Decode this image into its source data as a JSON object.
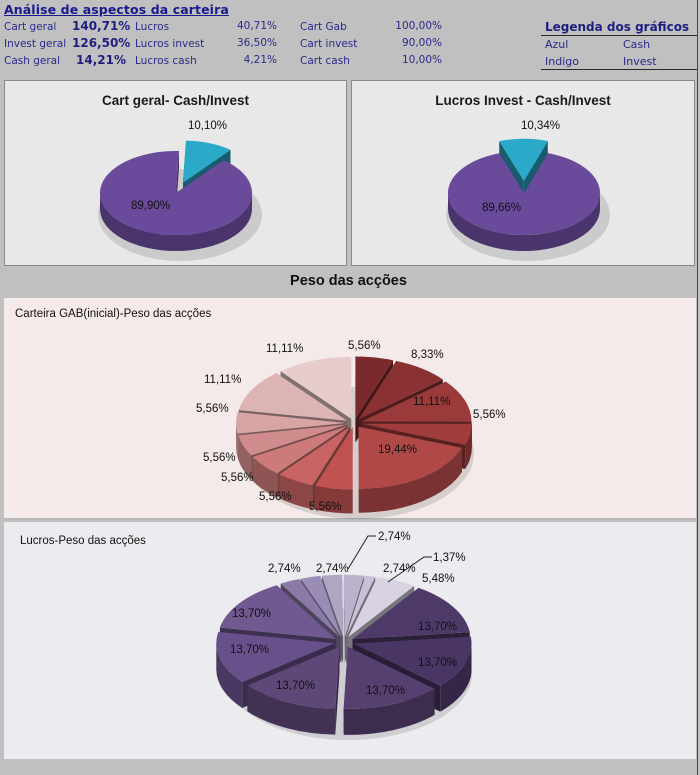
{
  "summary": {
    "title": "Análise de aspectos da carteira",
    "col1": [
      {
        "label": "Cart geral",
        "value": "140,71%"
      },
      {
        "label": "Invest geral",
        "value": "126,50%"
      },
      {
        "label": "Cash geral",
        "value": "14,21%"
      }
    ],
    "col2": [
      {
        "label": "Lucros",
        "value": "40,71%"
      },
      {
        "label": "Lucros invest",
        "value": "36,50%"
      },
      {
        "label": "Lucros cash",
        "value": "4,21%"
      }
    ],
    "col3": [
      {
        "label": "Cart Gab",
        "value": "100,00%"
      },
      {
        "label": "Cart invest",
        "value": "90,00%"
      },
      {
        "label": "Cart cash",
        "value": "10,00%"
      }
    ]
  },
  "legend": {
    "title": "Legenda dos gráficos",
    "rows": [
      {
        "color_name": "Azul",
        "meaning": "Cash"
      },
      {
        "color_name": "Indigo",
        "meaning": "Invest"
      }
    ]
  },
  "section_title": "Peso das acções",
  "colors": {
    "cash": "#2aa9c9",
    "invest": "#6a4a9a",
    "background": "#c0c0c0",
    "title_blue": "#1f1f80"
  },
  "chart_data": [
    {
      "type": "pie",
      "title": "Cart geral- Cash/Invest",
      "categories": [
        "Cash",
        "Invest"
      ],
      "values": [
        10.1,
        89.9
      ],
      "labels": [
        "10,10%",
        "89,90%"
      ],
      "colors": [
        "#2aa9c9",
        "#6a4a9a"
      ],
      "exploded": [
        true,
        false
      ],
      "style": "3d"
    },
    {
      "type": "pie",
      "title": "Lucros Invest - Cash/Invest",
      "categories": [
        "Cash",
        "Invest"
      ],
      "values": [
        10.34,
        89.66
      ],
      "labels": [
        "10,34%",
        "89,66%"
      ],
      "colors": [
        "#2aa9c9",
        "#6a4a9a"
      ],
      "exploded": [
        true,
        false
      ],
      "style": "3d"
    },
    {
      "type": "pie",
      "title": "Carteira GAB(inicial)-Peso das acções",
      "values": [
        5.56,
        8.33,
        11.11,
        5.56,
        19.44,
        5.56,
        5.56,
        5.56,
        5.56,
        5.56,
        11.11,
        11.11
      ],
      "labels": [
        "5,56%",
        "8,33%",
        "11,11%",
        "5,56%",
        "19,44%",
        "5,56%",
        "5,56%",
        "5,56%",
        "5,56%",
        "5,56%",
        "11,11%",
        "11,11%"
      ],
      "colors": [
        "#7a2a2a",
        "#8a3232",
        "#9a3a3a",
        "#a03c3c",
        "#b04848",
        "#c05252",
        "#c86464",
        "#cc7a7a",
        "#d08c8c",
        "#d8a4a4",
        "#dcb4b4",
        "#e8cccc"
      ],
      "exploded": "all",
      "style": "3d"
    },
    {
      "type": "pie",
      "title": "Lucros-Peso das acções",
      "values": [
        2.74,
        2.74,
        1.37,
        5.48,
        13.7,
        13.7,
        13.7,
        13.7,
        13.7,
        13.7,
        2.74,
        2.74
      ],
      "labels": [
        "2,74%",
        "2,74%",
        "1,37%",
        "5,48%",
        "13,70%",
        "13,70%",
        "13,70%",
        "13,70%",
        "13,70%",
        "13,70%",
        "2,74%",
        "2,74%"
      ],
      "colors": [
        "#b0a6c4",
        "#bcb2cc",
        "#c8c0d6",
        "#d8d2e2",
        "#4e3a68",
        "#4a3664",
        "#56406f",
        "#5e4878",
        "#68508a",
        "#705890",
        "#8a7aa8",
        "#9a8cb4"
      ],
      "exploded": "all",
      "style": "3d"
    }
  ]
}
